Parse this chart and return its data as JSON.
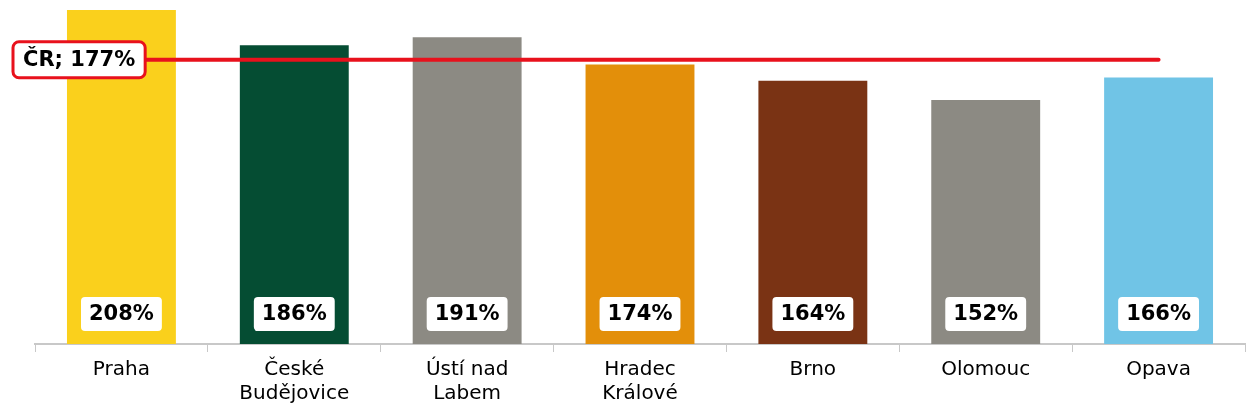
{
  "chart_data": {
    "type": "bar",
    "categories": [
      "Praha",
      "České Budějovice",
      "Ústí nad Labem",
      "Hradec Králové",
      "Brno",
      "Olomouc",
      "Opava"
    ],
    "values": [
      208,
      186,
      191,
      174,
      164,
      152,
      166
    ],
    "colors": [
      "#fad01c",
      "#054d33",
      "#8c8a83",
      "#e38f0a",
      "#7a3314",
      "#8c8a83",
      "#70c4e6"
    ],
    "value_labels": [
      "208%",
      "186%",
      "191%",
      "174%",
      "164%",
      "152%",
      "166%"
    ],
    "tick_labels": "x",
    "grid": false,
    "legend": false,
    "ref_lines": [
      {
        "axis": "y",
        "value": 177,
        "label": "ČR; 177%",
        "color": "#e8111c"
      }
    ]
  }
}
